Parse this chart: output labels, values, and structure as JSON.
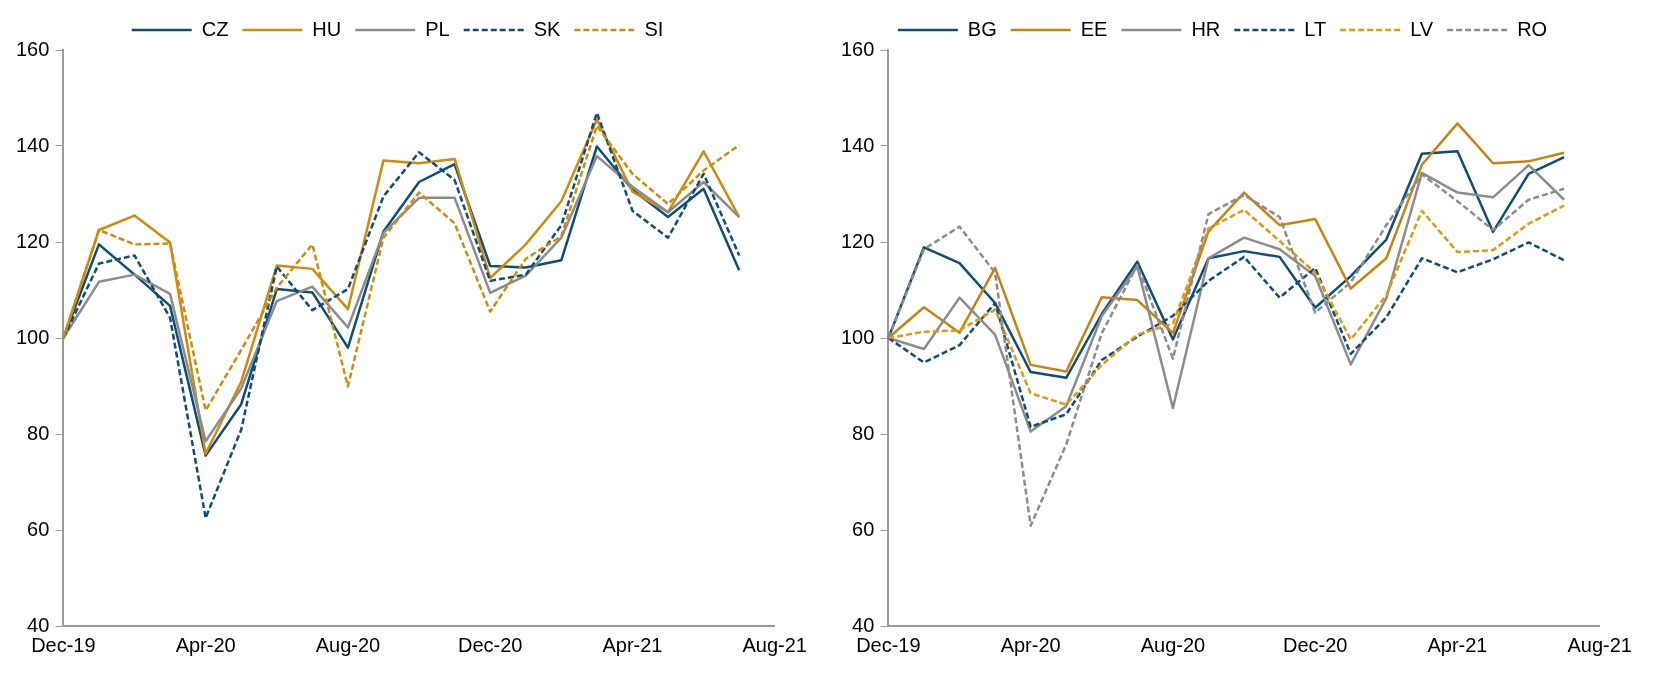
{
  "chart_data": [
    {
      "type": "line",
      "categories": [
        "Dec-19",
        null,
        null,
        null,
        "Apr-20",
        null,
        null,
        null,
        "Aug-20",
        null,
        null,
        null,
        "Dec-20",
        null,
        null,
        null,
        "Apr-21",
        null,
        null,
        null,
        "Aug-21"
      ],
      "ylim": [
        40,
        160
      ],
      "yticks": [
        40,
        60,
        80,
        100,
        120,
        140,
        160
      ],
      "grid": false,
      "legend": "top",
      "marker": "none",
      "series": [
        {
          "name": "CZ",
          "color": "#0e4d78",
          "line_style": "solid",
          "values": [
            100,
            119.5,
            113.2,
            106.7,
            75.5,
            86.2,
            110.2,
            109.5,
            98,
            122.2,
            132.5,
            136.2,
            115,
            114.7,
            116.2,
            139.9,
            130.9,
            125.2,
            131.1,
            114.1,
            null
          ]
        },
        {
          "name": "HU",
          "color": "#d08a0c",
          "line_style": "solid",
          "values": [
            100,
            122.5,
            125.5,
            119.9,
            75.9,
            90.9,
            115.1,
            114.4,
            106,
            137,
            136.4,
            137.3,
            112.5,
            119.5,
            128.5,
            145.5,
            130.5,
            126.2,
            138.9,
            125.2,
            null
          ]
        },
        {
          "name": "PL",
          "color": "#8c8c8c",
          "line_style": "solid",
          "values": [
            100,
            111.7,
            113.2,
            109.2,
            78.5,
            89.5,
            107.7,
            110.7,
            102.2,
            121.9,
            129.2,
            129.2,
            109.4,
            113,
            120.9,
            137.9,
            131.5,
            126.2,
            132.5,
            125.2,
            null
          ]
        },
        {
          "name": "SK",
          "color": "#0e4d78",
          "line_style": "dashed",
          "values": [
            100,
            115.5,
            117.2,
            104.2,
            62.5,
            80.9,
            114.9,
            105.8,
            110.2,
            129.5,
            138.7,
            132.9,
            111.9,
            113.2,
            123.5,
            146.9,
            126.5,
            120.9,
            134.2,
            117.2,
            null
          ]
        },
        {
          "name": "SI",
          "color": "#d08a0c",
          "line_style": "dashed",
          "values": [
            100,
            122.5,
            119.5,
            119.7,
            84.9,
            97.5,
            110.5,
            119.5,
            89.9,
            120.9,
            130.3,
            123.9,
            105.5,
            116.5,
            121.2,
            144.2,
            134.2,
            127.9,
            134.9,
            140.2,
            null
          ]
        }
      ]
    },
    {
      "type": "line",
      "categories": [
        "Dec-19",
        null,
        null,
        null,
        "Apr-20",
        null,
        null,
        null,
        "Aug-20",
        null,
        null,
        null,
        "Dec-20",
        null,
        null,
        null,
        "Apr-21",
        null,
        null,
        null,
        "Aug-21"
      ],
      "ylim": [
        40,
        160
      ],
      "yticks": [
        40,
        60,
        80,
        100,
        120,
        140,
        160
      ],
      "grid": false,
      "legend": "top",
      "marker": "none",
      "series": [
        {
          "name": "BG",
          "color": "#0e4d78",
          "line_style": "solid",
          "values": [
            100,
            118.9,
            115.6,
            107.3,
            92.9,
            91.7,
            105,
            115.9,
            99.7,
            116.6,
            118.1,
            116.9,
            106.3,
            112.9,
            120.5,
            138.4,
            138.9,
            122.1,
            134.2,
            137.7,
            null
          ]
        },
        {
          "name": "EE",
          "color": "#c7820f",
          "line_style": "solid",
          "values": [
            100,
            106.4,
            101.1,
            114.6,
            94.4,
            93,
            108.5,
            107.9,
            101,
            122.2,
            130.3,
            123.5,
            124.8,
            110.3,
            116.6,
            136.1,
            144.7,
            136.4,
            136.8,
            138.6,
            null
          ]
        },
        {
          "name": "HR",
          "color": "#8c8c8c",
          "line_style": "solid",
          "values": [
            100,
            97.7,
            108.4,
            100.7,
            80.5,
            85.8,
            104.6,
            114.9,
            85.4,
            116.6,
            120.9,
            118.5,
            112.9,
            94.5,
            108.3,
            134.4,
            130.3,
            129.3,
            136,
            128.8,
            null
          ]
        },
        {
          "name": "LT",
          "color": "#0e4d78",
          "line_style": "dashed",
          "values": [
            100,
            94.9,
            98.5,
            107.3,
            81.5,
            84.1,
            95.4,
            100.3,
            104.6,
            111.9,
            116.9,
            108.4,
            114.6,
            96.7,
            104.3,
            116.6,
            113.7,
            116.4,
            119.9,
            116.2,
            null
          ]
        },
        {
          "name": "LV",
          "color": "#e0980f",
          "line_style": "dashed",
          "values": [
            100,
            101.3,
            101.6,
            105.9,
            88.5,
            86.1,
            94.4,
            100.7,
            103,
            122.8,
            126.7,
            120.2,
            113.6,
            99.7,
            108.9,
            126.5,
            117.9,
            118.3,
            123.8,
            127.6,
            null
          ]
        },
        {
          "name": "RO",
          "color": "#8c8c8c",
          "line_style": "dashed",
          "values": [
            100,
            118.5,
            123.2,
            113.6,
            60.9,
            77.8,
            101,
            115.2,
            95.7,
            125.8,
            129.8,
            125.2,
            105.3,
            111.6,
            123.5,
            134.1,
            128.5,
            122.5,
            128.8,
            131.1,
            null
          ]
        }
      ]
    }
  ]
}
